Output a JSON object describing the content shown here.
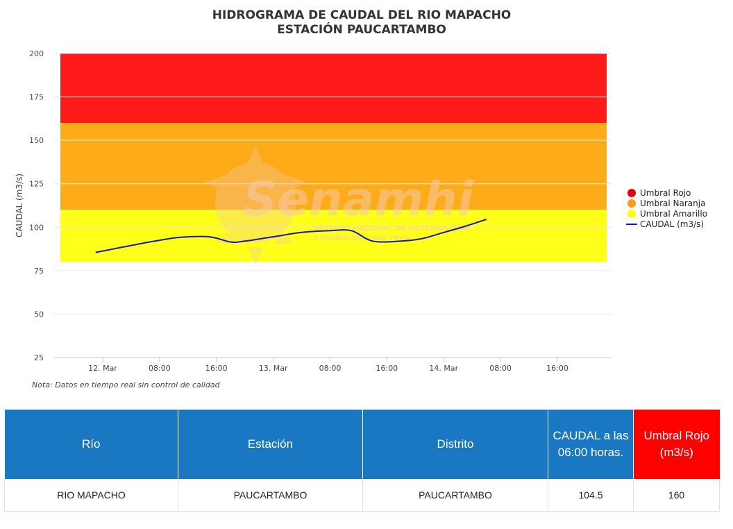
{
  "chart_data": {
    "type": "line",
    "title": "HIDROGRAMA DE CAUDAL DEL RIO MAPACHO",
    "subtitle": "ESTACIÓN PAUCARTAMBO",
    "ylabel": "CAUDAL (m3/s)",
    "ylim": [
      25,
      200
    ],
    "yticks": [
      "200",
      "175",
      "150",
      "125",
      "100",
      "75",
      "50",
      "25"
    ],
    "xticks": [
      "12. Mar",
      "08:00",
      "16:00",
      "13. Mar",
      "08:00",
      "16:00",
      "14. Mar",
      "08:00",
      "16:00"
    ],
    "grid": true,
    "legend_position": "right",
    "bands": [
      {
        "name": "Umbral Rojo",
        "from": 160,
        "to": 200,
        "color": "#ff1a1a"
      },
      {
        "name": "Umbral Naranja",
        "from": 110,
        "to": 160,
        "color": "#fdab19"
      },
      {
        "name": "Umbral Amarillo",
        "from": 80,
        "to": 110,
        "color": "#ffff19"
      }
    ],
    "series": [
      {
        "name": "CAUDAL (m3/s)",
        "color": "#1a1aa6",
        "x": [
          "11 Mar 23:00",
          "12 Mar 04:00",
          "12 Mar 08:00",
          "12 Mar 11:00",
          "12 Mar 15:00",
          "12 Mar 18:00",
          "12 Mar 20:00",
          "13 Mar 00:00",
          "13 Mar 04:00",
          "13 Mar 08:00",
          "13 Mar 11:00",
          "13 Mar 14:00",
          "13 Mar 18:00",
          "13 Mar 21:00",
          "14 Mar 00:00",
          "14 Mar 03:00",
          "14 Mar 06:00"
        ],
        "values": [
          85.5,
          89.5,
          92.5,
          94.2,
          94.5,
          91.5,
          92,
          94.5,
          97,
          98,
          98,
          92,
          92,
          93.5,
          97,
          100.5,
          104.5
        ]
      }
    ],
    "note": "Nota: Datos en tiempo real sin control de calidad"
  },
  "watermark": {
    "brand": "Senamhi",
    "line1": "SERVICIO NACIONAL DE METEOROLOGÍA",
    "line2": "E HIDROLOGÍA DEL PERÚ"
  },
  "table": {
    "headers": [
      "Río",
      "Estación",
      "Distrito",
      "CAUDAL a las 06:00 horas.",
      "Umbral Rojo (m3/s)"
    ],
    "row": [
      "RIO MAPACHO",
      "PAUCARTAMBO",
      "PAUCARTAMBO",
      "104.5",
      "160"
    ]
  },
  "colors": {
    "header_blue": "#1a78c2",
    "header_red": "#ff0000"
  }
}
